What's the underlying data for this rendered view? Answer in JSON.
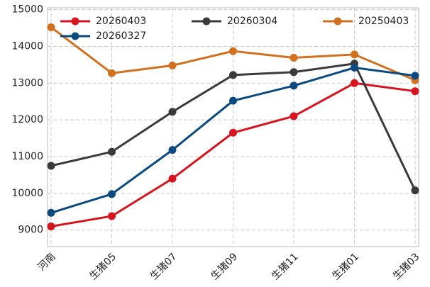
{
  "chart_data": {
    "type": "line",
    "categories": [
      "河南",
      "生猪05",
      "生猪07",
      "生猪09",
      "生猪11",
      "生猪01",
      "生猪03"
    ],
    "series": [
      {
        "name": "20260403",
        "color": "#d7141e",
        "values": [
          9100,
          9380,
          10400,
          11650,
          12100,
          13000,
          12780
        ]
      },
      {
        "name": "20260304",
        "color": "#3a3a3a",
        "values": [
          10750,
          11130,
          12220,
          13220,
          13300,
          13530,
          10080
        ]
      },
      {
        "name": "20250403",
        "color": "#d2701f",
        "values": [
          14520,
          13270,
          13480,
          13870,
          13690,
          13780,
          13080
        ]
      },
      {
        "name": "20260327",
        "color": "#0b4a7e",
        "values": [
          9470,
          9980,
          11180,
          12520,
          12930,
          13420,
          13200
        ]
      }
    ],
    "ylim": [
      8550,
      15050
    ],
    "yticks": [
      9000,
      10000,
      11000,
      12000,
      13000,
      14000,
      15000
    ],
    "grid": true
  }
}
